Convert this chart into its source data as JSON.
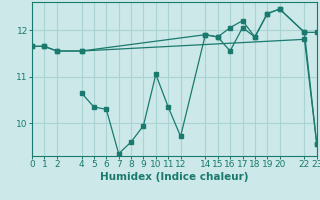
{
  "xlabel": "Humidex (Indice chaleur)",
  "background_color": "#cce8e8",
  "line_color": "#1a7a6e",
  "grid_color": "#aad4d4",
  "series1_x": [
    0,
    1,
    2,
    4,
    22,
    23
  ],
  "series1_y": [
    11.65,
    11.65,
    11.55,
    11.55,
    11.8,
    9.55
  ],
  "series2_x": [
    0,
    1,
    2,
    4,
    14,
    15,
    16,
    17,
    18,
    19,
    20,
    22,
    23
  ],
  "series2_y": [
    11.65,
    11.65,
    11.55,
    11.55,
    11.9,
    11.85,
    12.05,
    12.2,
    11.85,
    12.35,
    12.45,
    11.95,
    11.95
  ],
  "series3_x": [
    4,
    5,
    6,
    7,
    8,
    9,
    10,
    11,
    12,
    14,
    15,
    16,
    17,
    18,
    19,
    20,
    22,
    23
  ],
  "series3_y": [
    10.65,
    10.35,
    10.3,
    9.35,
    9.6,
    9.95,
    11.05,
    10.35,
    9.72,
    11.9,
    11.85,
    11.55,
    12.05,
    11.85,
    12.35,
    12.45,
    11.95,
    9.55
  ],
  "xlim": [
    0,
    23
  ],
  "ylim": [
    9.3,
    12.6
  ],
  "xticks": [
    0,
    1,
    2,
    4,
    5,
    6,
    7,
    8,
    9,
    10,
    11,
    12,
    14,
    15,
    16,
    17,
    18,
    19,
    20,
    22,
    23
  ],
  "yticks": [
    10,
    11,
    12
  ],
  "tick_fontsize": 6.5,
  "label_fontsize": 7.5
}
